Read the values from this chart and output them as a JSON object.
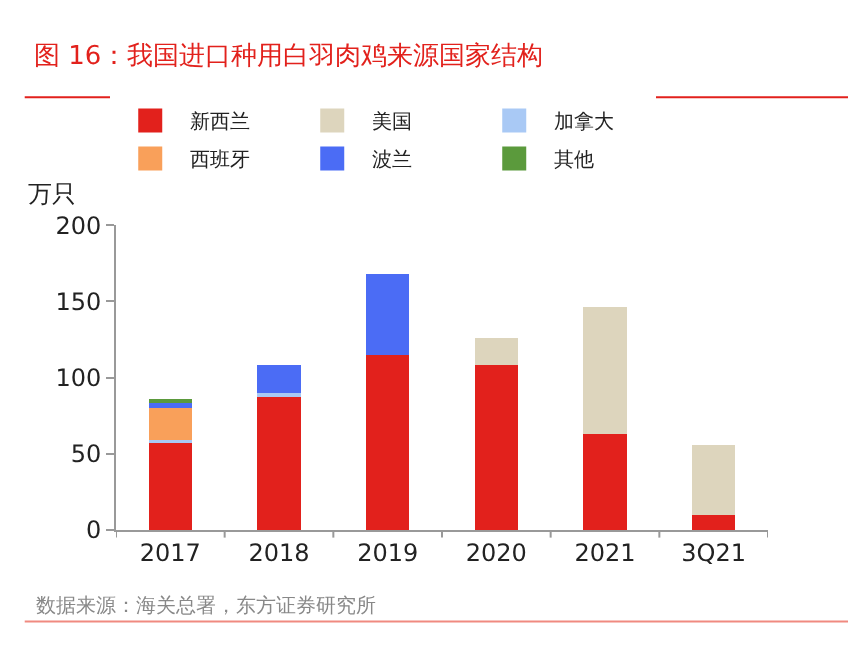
{
  "chart_data": {
    "type": "bar",
    "stacked": true,
    "title": "图 16：我国进口种用白羽肉鸡来源国家结构",
    "ylabel": "万只",
    "categories": [
      "2017",
      "2018",
      "2019",
      "2020",
      "2021",
      "3Q21"
    ],
    "series": [
      {
        "name": "新西兰",
        "color": "#e2211c",
        "values": [
          58,
          88,
          115,
          108,
          63,
          10
        ]
      },
      {
        "name": "美国",
        "color": "#ddd5bd",
        "values": [
          null,
          null,
          null,
          18,
          83,
          46
        ]
      },
      {
        "name": "加拿大",
        "color": "#a9c9f5",
        "values": [
          1,
          2,
          null,
          null,
          null,
          null
        ]
      },
      {
        "name": "西班牙",
        "color": "#f9a05a",
        "values": [
          21,
          null,
          null,
          null,
          null,
          null
        ]
      },
      {
        "name": "波兰",
        "color": "#4b6cf5",
        "values": [
          4,
          18,
          53,
          null,
          null,
          null
        ]
      },
      {
        "name": "其他",
        "color": "#5b9a3c",
        "values": [
          1,
          null,
          null,
          null,
          null,
          null
        ]
      }
    ],
    "ylim": [
      0,
      200
    ],
    "yticks": [
      0,
      50,
      100,
      150,
      200
    ],
    "legend": "top",
    "annotations": [
      "数据来源：海关总署，东方证券研究所"
    ]
  }
}
